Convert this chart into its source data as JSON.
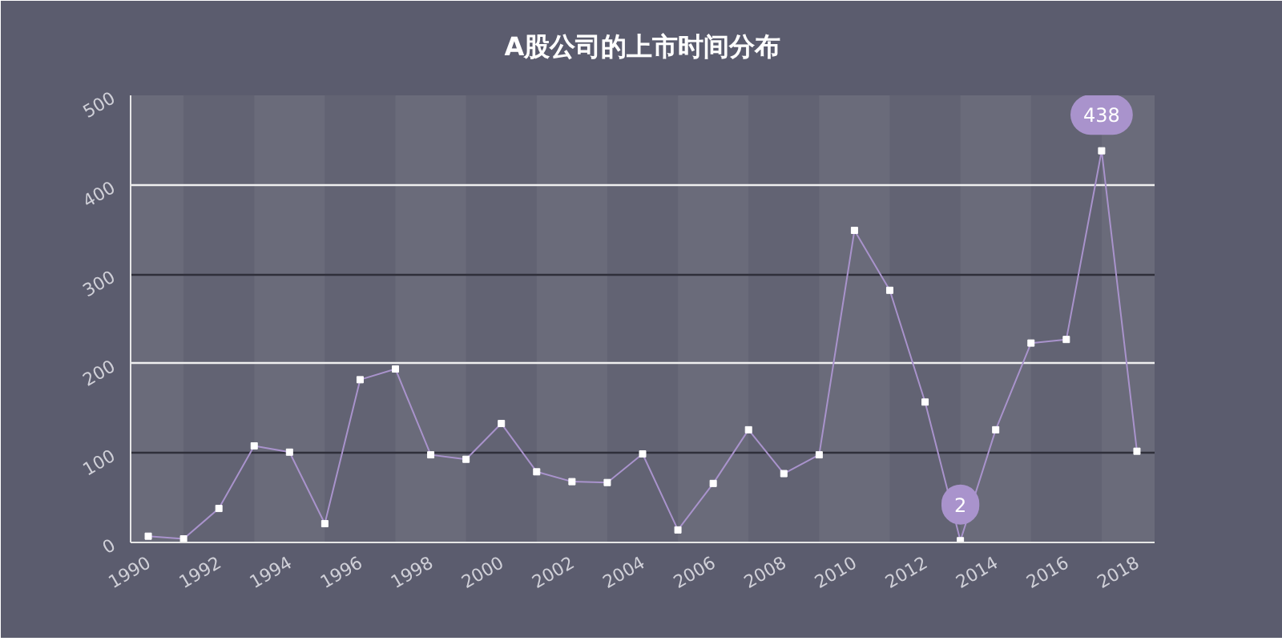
{
  "chart_data": {
    "type": "line",
    "title": "A股公司的上市时间分布",
    "x": [
      1990,
      1991,
      1992,
      1993,
      1994,
      1995,
      1996,
      1997,
      1998,
      1999,
      2000,
      2001,
      2002,
      2003,
      2004,
      2005,
      2006,
      2007,
      2008,
      2009,
      2010,
      2011,
      2012,
      2013,
      2014,
      2015,
      2016,
      2017,
      2018
    ],
    "series": [
      {
        "color": "#a993cc",
        "values": [
          7,
          4,
          38,
          108,
          101,
          21,
          182,
          194,
          98,
          93,
          133,
          79,
          68,
          67,
          99,
          14,
          66,
          126,
          77,
          98,
          349,
          282,
          157,
          2,
          126,
          223,
          227,
          438,
          102
        ],
        "value_labels": [
          null,
          null,
          null,
          null,
          null,
          null,
          null,
          null,
          null,
          null,
          null,
          null,
          null,
          null,
          null,
          null,
          null,
          null,
          null,
          null,
          null,
          null,
          null,
          "2",
          null,
          null,
          null,
          "438",
          null
        ]
      }
    ],
    "xlim": [
      1989.5,
      2018.5
    ],
    "xticks": [
      1990,
      1992,
      1994,
      1996,
      1998,
      2000,
      2002,
      2004,
      2006,
      2008,
      2010,
      2012,
      2014,
      2016,
      2018
    ],
    "ylim": [
      0,
      500
    ],
    "yticks": [
      0,
      100,
      200,
      300,
      400,
      500
    ],
    "bands": [
      {
        "axis": "x",
        "from": 1989.5,
        "to": 1991,
        "color": "#6a6b7a"
      },
      {
        "axis": "x",
        "from": 1993,
        "to": 1995,
        "color": "#6a6b7a"
      },
      {
        "axis": "x",
        "from": 1997,
        "to": 1999,
        "color": "#6a6b7a"
      },
      {
        "axis": "x",
        "from": 2001,
        "to": 2003,
        "color": "#6a6b7a"
      },
      {
        "axis": "x",
        "from": 2005,
        "to": 2007,
        "color": "#6a6b7a"
      },
      {
        "axis": "x",
        "from": 2009,
        "to": 2011,
        "color": "#6a6b7a"
      },
      {
        "axis": "x",
        "from": 2013,
        "to": 2015,
        "color": "#6a6b7a"
      },
      {
        "axis": "x",
        "from": 2017,
        "to": 2018.5,
        "color": "#6a6b7a"
      }
    ],
    "grid": "y",
    "marker": "square",
    "line_style": "solid"
  }
}
